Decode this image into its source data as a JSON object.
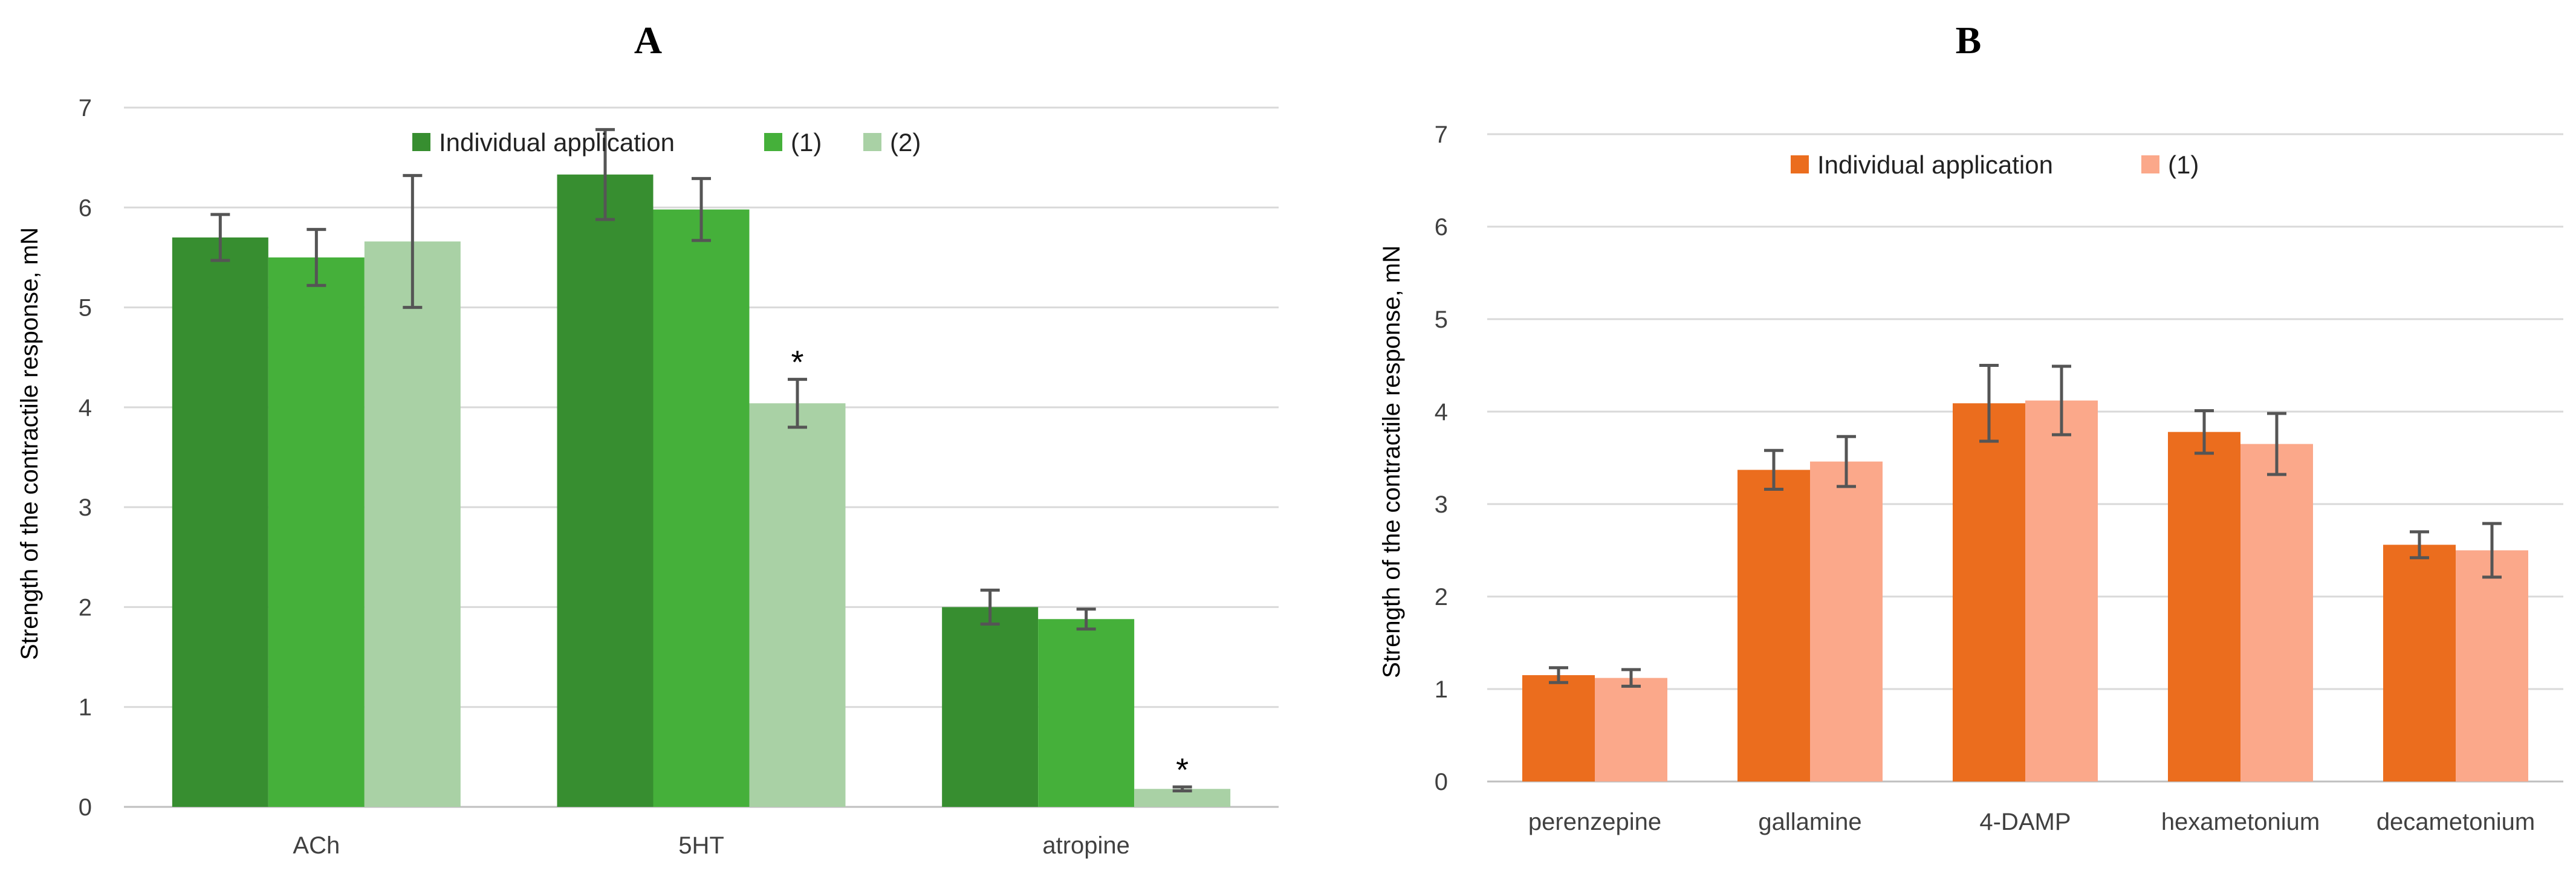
{
  "chart_data": [
    {
      "panel": "A",
      "type": "bar",
      "title": "A",
      "ylabel": "Strength of the contractile response, mN",
      "xlabel": "",
      "ylim": [
        0,
        7
      ],
      "yticks": [
        "0",
        "1",
        "2",
        "3",
        "4",
        "5",
        "6",
        "7"
      ],
      "grid": true,
      "legend": "top",
      "categories": [
        "ACh",
        "5HT",
        "atropine"
      ],
      "series": [
        {
          "name": "Individual application",
          "color": "#378e30",
          "values": [
            5.7,
            6.33,
            2.0
          ],
          "errors": [
            0.23,
            0.45,
            0.17
          ]
        },
        {
          "name": "(1)",
          "color": "#45b03a",
          "values": [
            5.5,
            5.98,
            1.88
          ],
          "errors": [
            0.28,
            0.31,
            0.1
          ]
        },
        {
          "name": "(2)",
          "color": "#a9d1a5",
          "values": [
            5.66,
            4.04,
            0.18
          ],
          "errors": [
            0.66,
            0.24,
            0.02
          ]
        }
      ],
      "annotations": [
        {
          "text": "*",
          "category": "5HT",
          "series": "(2)"
        },
        {
          "text": "*",
          "category": "atropine",
          "series": "(2)"
        }
      ]
    },
    {
      "panel": "B",
      "type": "bar",
      "title": "B",
      "ylabel": "Strength of the contractile response, mN",
      "xlabel": "",
      "ylim": [
        0,
        7
      ],
      "yticks": [
        "0",
        "1",
        "2",
        "3",
        "4",
        "5",
        "6",
        "7"
      ],
      "grid": true,
      "legend": "top",
      "categories": [
        "perenzepine",
        "gallamine",
        "4-DAMP",
        "hexametonium",
        "decametonium"
      ],
      "series": [
        {
          "name": "Individual application",
          "color": "#eb6d1e",
          "values": [
            1.15,
            3.37,
            4.09,
            3.78,
            2.56
          ],
          "errors": [
            0.08,
            0.21,
            0.41,
            0.23,
            0.14
          ]
        },
        {
          "name": "(1)",
          "color": "#fba88a",
          "values": [
            1.12,
            3.46,
            4.12,
            3.65,
            2.5
          ],
          "errors": [
            0.09,
            0.27,
            0.37,
            0.33,
            0.29
          ]
        }
      ],
      "annotations": []
    }
  ]
}
